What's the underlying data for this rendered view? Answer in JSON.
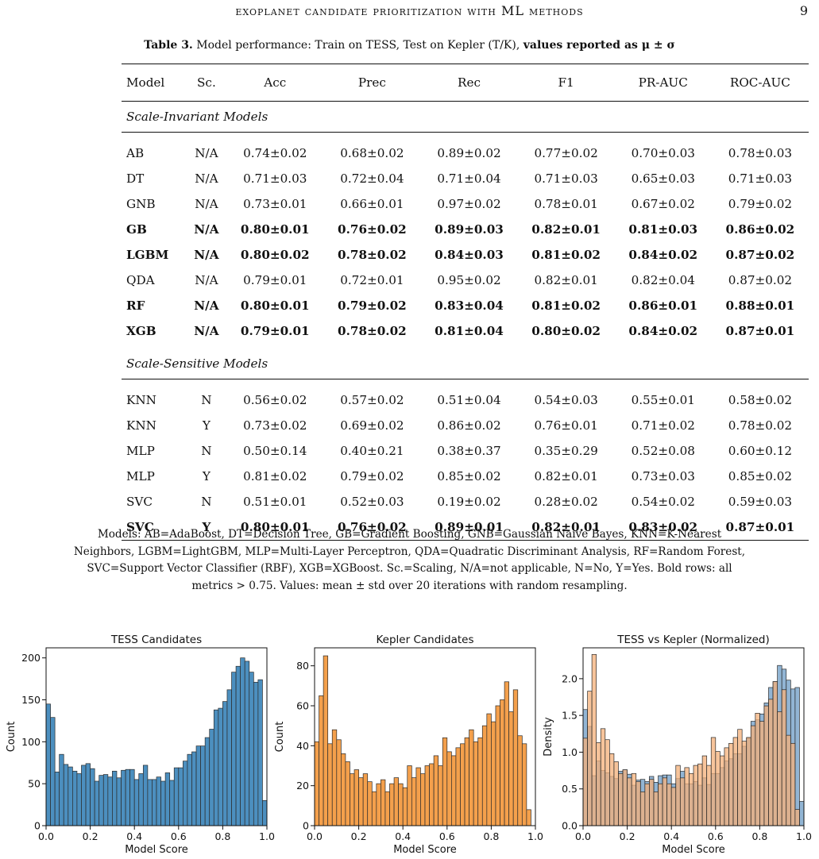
{
  "running_head": {
    "title": "exoplanet candidate prioritization with ML methods",
    "page_number": "9"
  },
  "table": {
    "caption_label": "Table 3.",
    "caption_text": " Model performance: Train on TESS, Test on Kepler (T/K), ",
    "caption_bold": "values reported as μ ± σ",
    "headers": [
      "Model",
      "Sc.",
      "Acc",
      "Prec",
      "Rec",
      "F1",
      "PR-AUC",
      "ROC-AUC"
    ],
    "group1_title": "Scale-Invariant Models",
    "group1_rows": [
      {
        "cells": [
          "AB",
          "N/A",
          "0.74±0.02",
          "0.68±0.02",
          "0.89±0.02",
          "0.77±0.02",
          "0.70±0.03",
          "0.78±0.03"
        ],
        "bold": false
      },
      {
        "cells": [
          "DT",
          "N/A",
          "0.71±0.03",
          "0.72±0.04",
          "0.71±0.04",
          "0.71±0.03",
          "0.65±0.03",
          "0.71±0.03"
        ],
        "bold": false
      },
      {
        "cells": [
          "GNB",
          "N/A",
          "0.73±0.01",
          "0.66±0.01",
          "0.97±0.02",
          "0.78±0.01",
          "0.67±0.02",
          "0.79±0.02"
        ],
        "bold": false
      },
      {
        "cells": [
          "GB",
          "N/A",
          "0.80±0.01",
          "0.76±0.02",
          "0.89±0.03",
          "0.82±0.01",
          "0.81±0.03",
          "0.86±0.02"
        ],
        "bold": true
      },
      {
        "cells": [
          "LGBM",
          "N/A",
          "0.80±0.02",
          "0.78±0.02",
          "0.84±0.03",
          "0.81±0.02",
          "0.84±0.02",
          "0.87±0.02"
        ],
        "bold": true
      },
      {
        "cells": [
          "QDA",
          "N/A",
          "0.79±0.01",
          "0.72±0.01",
          "0.95±0.02",
          "0.82±0.01",
          "0.82±0.04",
          "0.87±0.02"
        ],
        "bold": false
      },
      {
        "cells": [
          "RF",
          "N/A",
          "0.80±0.01",
          "0.79±0.02",
          "0.83±0.04",
          "0.81±0.02",
          "0.86±0.01",
          "0.88±0.01"
        ],
        "bold": true
      },
      {
        "cells": [
          "XGB",
          "N/A",
          "0.79±0.01",
          "0.78±0.02",
          "0.81±0.04",
          "0.80±0.02",
          "0.84±0.02",
          "0.87±0.01"
        ],
        "bold": true
      }
    ],
    "group2_title": "Scale-Sensitive Models",
    "group2_rows": [
      {
        "cells": [
          "KNN",
          "N",
          "0.56±0.02",
          "0.57±0.02",
          "0.51±0.04",
          "0.54±0.03",
          "0.55±0.01",
          "0.58±0.02"
        ],
        "bold": false
      },
      {
        "cells": [
          "KNN",
          "Y",
          "0.73±0.02",
          "0.69±0.02",
          "0.86±0.02",
          "0.76±0.01",
          "0.71±0.02",
          "0.78±0.02"
        ],
        "bold": false
      },
      {
        "cells": [
          "MLP",
          "N",
          "0.50±0.14",
          "0.40±0.21",
          "0.38±0.37",
          "0.35±0.29",
          "0.52±0.08",
          "0.60±0.12"
        ],
        "bold": false
      },
      {
        "cells": [
          "MLP",
          "Y",
          "0.81±0.02",
          "0.79±0.02",
          "0.85±0.02",
          "0.82±0.01",
          "0.73±0.03",
          "0.85±0.02"
        ],
        "bold": false
      },
      {
        "cells": [
          "SVC",
          "N",
          "0.51±0.01",
          "0.52±0.03",
          "0.19±0.02",
          "0.28±0.02",
          "0.54±0.02",
          "0.59±0.03"
        ],
        "bold": false
      },
      {
        "cells": [
          "SVC",
          "Y",
          "0.80±0.01",
          "0.76±0.02",
          "0.89±0.01",
          "0.82±0.01",
          "0.83±0.02",
          "0.87±0.01"
        ],
        "bold": true
      }
    ],
    "notes": [
      "Models: AB=AdaBoost, DT=Decision Tree, GB=Gradient Boosting, GNB=Gaussian Naive Bayes, KNN=K-Nearest",
      "Neighbors, LGBM=LightGBM, MLP=Multi-Layer Perceptron, QDA=Quadratic Discriminant Analysis, RF=Random Forest,",
      "SVC=Support Vector Classifier (RBF), XGB=XGBoost. Sc.=Scaling, N/A=not applicable, N=No, Y=Yes. Bold rows: all",
      "metrics > 0.75. Values: mean ± std over 20 iterations with random resampling."
    ]
  },
  "chart_data": [
    {
      "type": "bar",
      "title": "TESS Candidates",
      "xlabel": "Model Score",
      "ylabel": "Count",
      "xlim": [
        0,
        1
      ],
      "ylim": [
        0,
        212
      ],
      "xticks": [
        "0.0",
        "0.2",
        "0.4",
        "0.6",
        "0.8",
        "1.0"
      ],
      "yticks": [
        "0",
        "50",
        "100",
        "150",
        "200"
      ],
      "bin_edges": [
        0.0,
        1.0
      ],
      "color": "#4c8fbf",
      "values": [
        145,
        129,
        64,
        85,
        73,
        70,
        65,
        62,
        72,
        74,
        68,
        53,
        60,
        61,
        58,
        65,
        57,
        66,
        67,
        67,
        55,
        62,
        72,
        55,
        55,
        58,
        53,
        63,
        54,
        69,
        69,
        77,
        85,
        88,
        95,
        95,
        105,
        115,
        138,
        140,
        148,
        162,
        183,
        190,
        200,
        196,
        183,
        171,
        174,
        30
      ]
    },
    {
      "type": "bar",
      "title": "Kepler Candidates",
      "xlabel": "Model Score",
      "ylabel": "Count",
      "xlim": [
        0,
        1
      ],
      "ylim": [
        0,
        89
      ],
      "xticks": [
        "0.0",
        "0.2",
        "0.4",
        "0.6",
        "0.8",
        "1.0"
      ],
      "yticks": [
        "0",
        "20",
        "40",
        "60",
        "80"
      ],
      "bin_edges": [
        0.0,
        0.98
      ],
      "color": "#f4a04c",
      "values": [
        42,
        65,
        85,
        41,
        48,
        43,
        36,
        32,
        26,
        28,
        24,
        26,
        22,
        17,
        21,
        23,
        17,
        21,
        24,
        21,
        19,
        30,
        24,
        29,
        26,
        30,
        31,
        35,
        30,
        44,
        37,
        35,
        39,
        41,
        44,
        48,
        42,
        44,
        50,
        56,
        52,
        60,
        63,
        72,
        57,
        68,
        45,
        41,
        8
      ]
    },
    {
      "type": "bar",
      "title": "TESS vs Kepler (Normalized)",
      "xlabel": "Model Score",
      "ylabel": "Density",
      "xlim": [
        0,
        1
      ],
      "ylim": [
        0,
        2.42
      ],
      "xticks": [
        "0.0",
        "0.2",
        "0.4",
        "0.6",
        "0.8",
        "1.0"
      ],
      "yticks": [
        "0.0",
        "0.5",
        "1.0",
        "1.5",
        "2.0"
      ],
      "series": [
        {
          "color": "#6e9cc6",
          "values": [
            1.58,
            1.35,
            0.68,
            0.88,
            0.75,
            0.72,
            0.67,
            0.64,
            0.74,
            0.76,
            0.7,
            0.55,
            0.62,
            0.63,
            0.6,
            0.67,
            0.59,
            0.68,
            0.69,
            0.69,
            0.57,
            0.64,
            0.74,
            0.57,
            0.57,
            0.6,
            0.55,
            0.65,
            0.56,
            0.71,
            0.71,
            0.79,
            0.88,
            0.91,
            0.98,
            0.98,
            1.08,
            1.19,
            1.42,
            1.44,
            1.52,
            1.67,
            1.88,
            1.96,
            2.18,
            2.13,
            1.98,
            1.86,
            1.88,
            0.33
          ]
        },
        {
          "color": "#f4b07a",
          "values": [
            1.19,
            1.83,
            2.33,
            1.13,
            1.32,
            1.17,
            0.98,
            0.87,
            0.71,
            0.76,
            0.65,
            0.71,
            0.6,
            0.46,
            0.57,
            0.63,
            0.46,
            0.57,
            0.65,
            0.57,
            0.52,
            0.82,
            0.65,
            0.79,
            0.71,
            0.82,
            0.84,
            0.95,
            0.82,
            1.2,
            1.01,
            0.95,
            1.06,
            1.12,
            1.2,
            1.31,
            1.15,
            1.2,
            1.36,
            1.53,
            1.42,
            1.63,
            1.72,
            1.96,
            1.55,
            1.85,
            1.23,
            1.12,
            0.22,
            0.0
          ]
        }
      ]
    }
  ]
}
